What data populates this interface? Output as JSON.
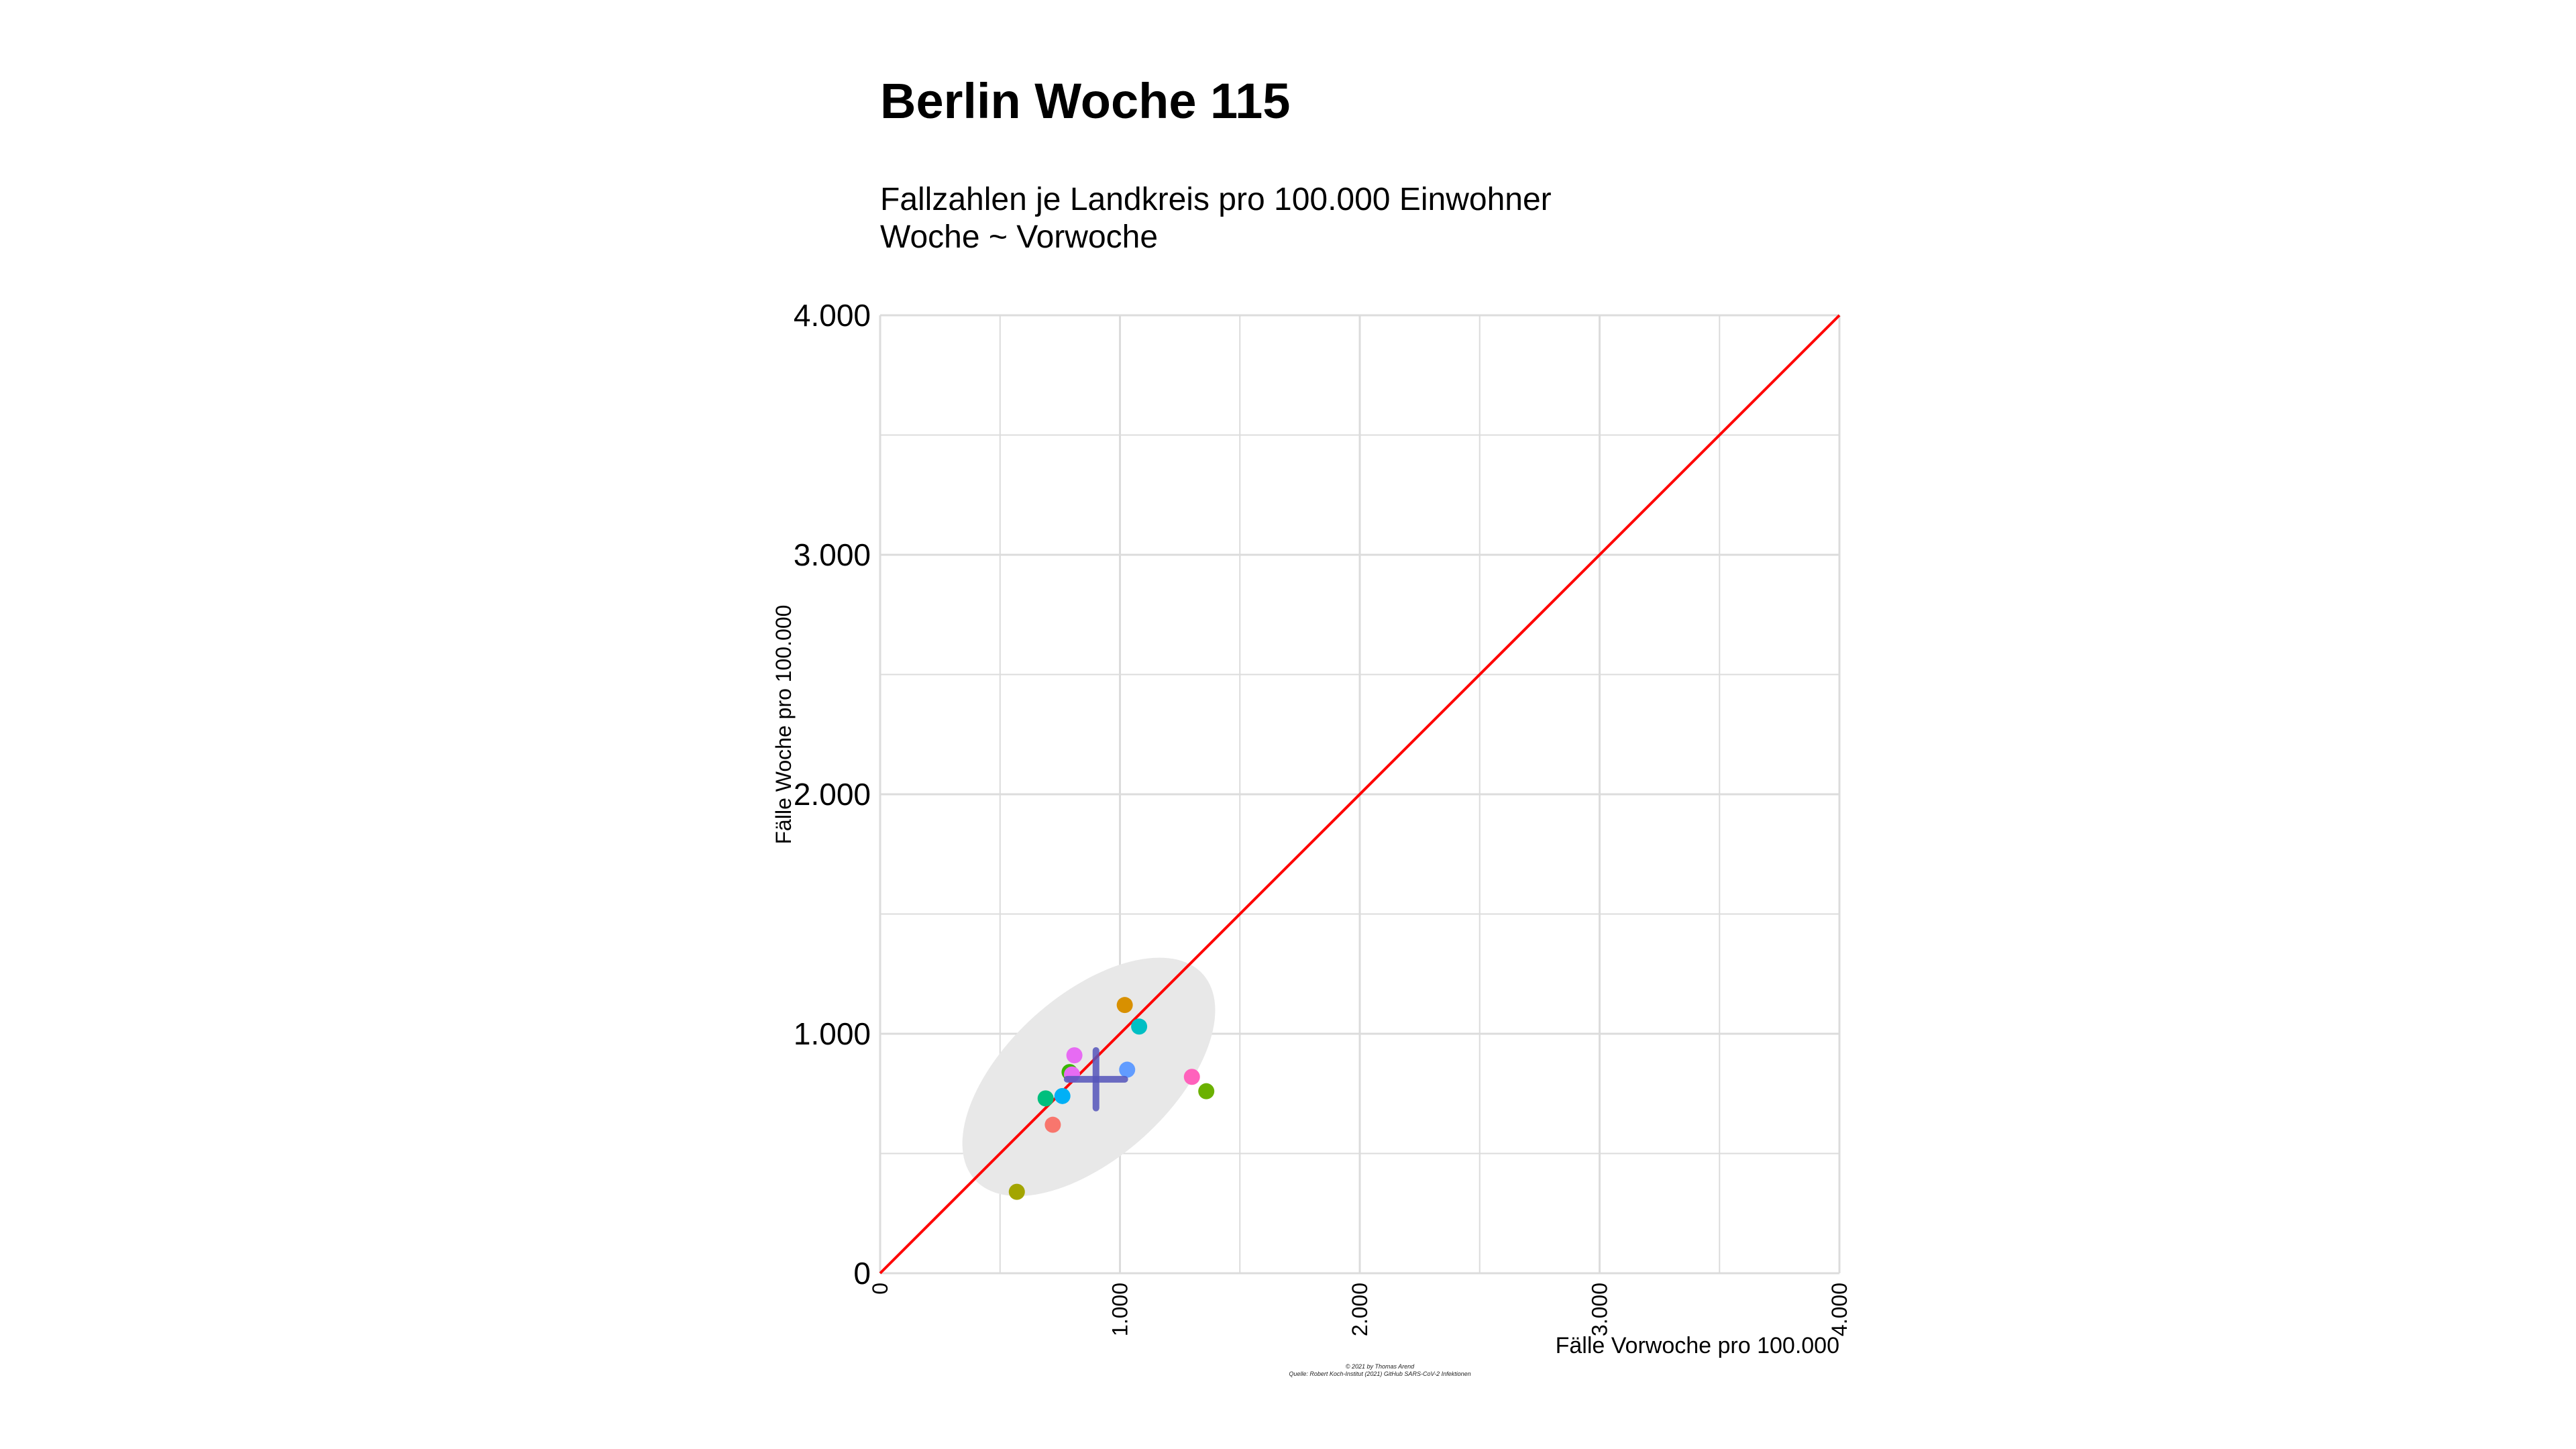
{
  "title": "Berlin Woche 115",
  "subtitle_line1": "Fallzahlen je Landkreis pro 100.000 Einwohner",
  "subtitle_line2": "Woche ~ Vorwoche",
  "caption_line1": "© 2021 by Thomas Arend",
  "caption_line2": "Quelle: Robert Koch-Institut (2021) GitHub SARS-CoV-2 Infektionen",
  "colors": {
    "diagonal": "#ff0000",
    "ellipse": "#e8e8e8",
    "mean_cross": "#5555bb",
    "grid": "#dcdcdc"
  },
  "chart_data": {
    "type": "scatter",
    "title": "Berlin Woche 115",
    "xlabel": "Fälle Vorwoche pro 100.000",
    "ylabel": "Fälle Woche pro 100.000",
    "xlim": [
      0,
      4000
    ],
    "ylim": [
      0,
      4000
    ],
    "x_ticks": [
      0,
      1000,
      2000,
      3000,
      4000
    ],
    "x_tick_labels": [
      "0",
      "1.000",
      "2.000",
      "3.000",
      "4.000"
    ],
    "y_ticks": [
      0,
      1000,
      2000,
      3000,
      4000
    ],
    "y_tick_labels": [
      "0",
      "1.000",
      "2.000",
      "3.000",
      "4.000"
    ],
    "grid": true,
    "reference_line": {
      "type": "identity",
      "color": "#ff0000"
    },
    "points": [
      {
        "x": 570,
        "y": 340,
        "color": "#a3a500"
      },
      {
        "x": 720,
        "y": 620,
        "color": "#f8766d"
      },
      {
        "x": 690,
        "y": 730,
        "color": "#00bf7d"
      },
      {
        "x": 760,
        "y": 740,
        "color": "#00b0f6"
      },
      {
        "x": 790,
        "y": 840,
        "color": "#39b600"
      },
      {
        "x": 800,
        "y": 830,
        "color": "#e76bf3"
      },
      {
        "x": 810,
        "y": 910,
        "color": "#e76bf3"
      },
      {
        "x": 1020,
        "y": 1120,
        "color": "#d89000"
      },
      {
        "x": 1030,
        "y": 850,
        "color": "#619cff"
      },
      {
        "x": 1080,
        "y": 1030,
        "color": "#00bfc4"
      },
      {
        "x": 1300,
        "y": 820,
        "color": "#ff62bc"
      },
      {
        "x": 1360,
        "y": 760,
        "color": "#6bb100"
      }
    ],
    "mean": {
      "x": 900,
      "y": 810,
      "x_range": [
        780,
        1020
      ],
      "y_range": [
        690,
        930
      ]
    },
    "ellipse": {
      "cx": 870,
      "cy": 820,
      "rx": 640,
      "ry": 340,
      "angle_deg": 42
    }
  }
}
